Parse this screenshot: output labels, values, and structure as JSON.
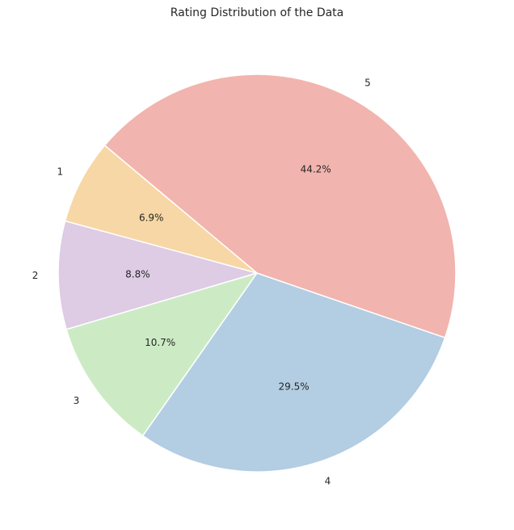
{
  "chart_data": {
    "type": "pie",
    "title": "Rating Distribution of the Data",
    "categories": [
      "1",
      "2",
      "3",
      "4",
      "5"
    ],
    "values": [
      6.9,
      8.8,
      10.7,
      29.5,
      44.2
    ],
    "value_labels": [
      "6.9%",
      "8.8%",
      "10.7%",
      "29.5%",
      "44.2%"
    ],
    "colors": [
      "#f7d7a5",
      "#decbe4",
      "#ccebc5",
      "#b3cde3",
      "#f2b4ae"
    ],
    "start_angle_deg": 140,
    "direction": "counterclockwise",
    "legend": "none"
  }
}
